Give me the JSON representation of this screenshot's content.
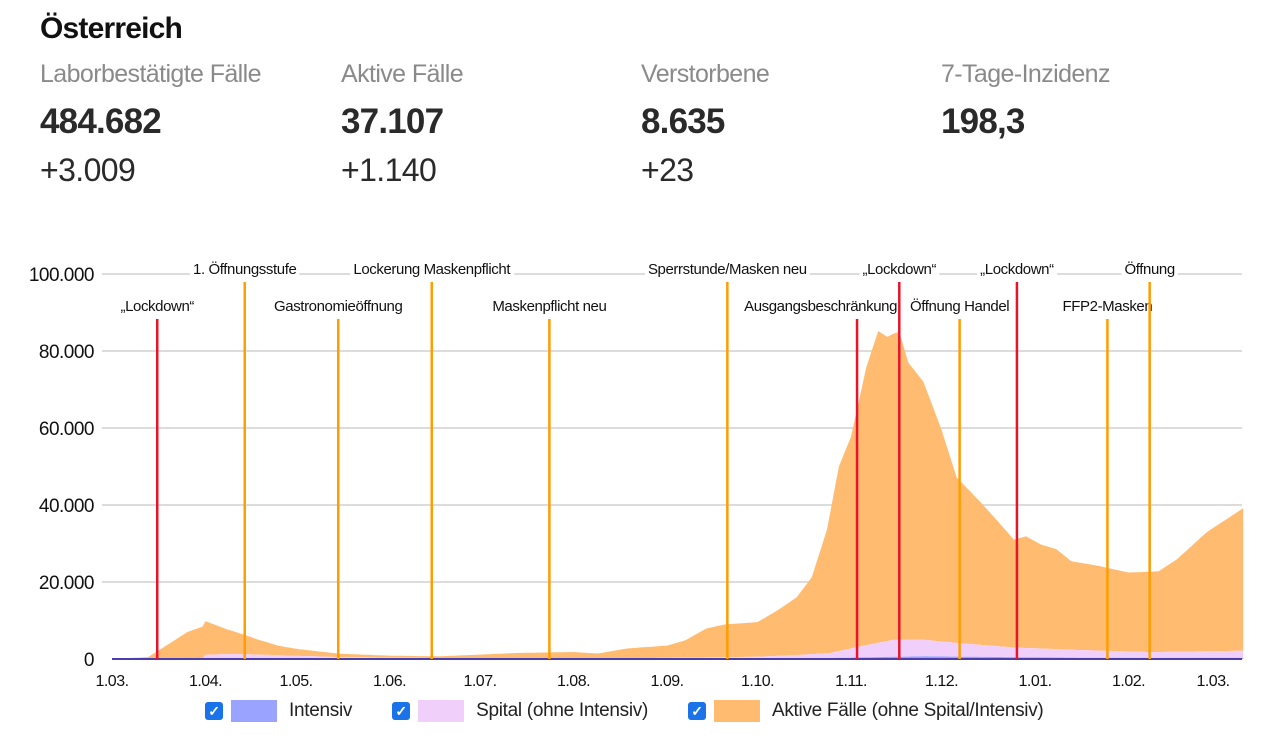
{
  "title": "Österreich",
  "stats": [
    {
      "label": "Laborbestätigte Fälle",
      "value": "484.682",
      "delta": "+3.009"
    },
    {
      "label": "Aktive Fälle",
      "value": "37.107",
      "delta": "+1.140"
    },
    {
      "label": "Verstorbene",
      "value": "8.635",
      "delta": "+23"
    },
    {
      "label": "7-Tage-Inzidenz",
      "value": "198,3",
      "delta": ""
    }
  ],
  "legend": [
    {
      "label": "Intensiv",
      "checked": true,
      "color": "#9aa3ff"
    },
    {
      "label": "Spital (ohne Intensiv)",
      "checked": true,
      "color": "#f0d0fb"
    },
    {
      "label": "Aktive Fälle (ohne Spital/Intensiv)",
      "checked": true,
      "color": "#ffbb70"
    }
  ],
  "chart_data": {
    "type": "area",
    "stacked": true,
    "title": "",
    "xlabel": "",
    "ylabel": "",
    "ylim": [
      0,
      100000
    ],
    "xlim": [
      "2020-03-01",
      "2021-03-11"
    ],
    "grid": true,
    "legend_position": "bottom",
    "y_ticks": [
      {
        "value": 0,
        "label": "0"
      },
      {
        "value": 20000,
        "label": "20.000"
      },
      {
        "value": 40000,
        "label": "40.000"
      },
      {
        "value": 60000,
        "label": "60.000"
      },
      {
        "value": 80000,
        "label": "80.000"
      },
      {
        "value": 100000,
        "label": "100.000"
      }
    ],
    "x_ticks": [
      {
        "date": "2020-03-01",
        "label": "1.03."
      },
      {
        "date": "2020-04-01",
        "label": "1.04."
      },
      {
        "date": "2020-05-01",
        "label": "1.05."
      },
      {
        "date": "2020-06-01",
        "label": "1.06."
      },
      {
        "date": "2020-07-01",
        "label": "1.07."
      },
      {
        "date": "2020-08-01",
        "label": "1.08."
      },
      {
        "date": "2020-09-01",
        "label": "1.09."
      },
      {
        "date": "2020-10-01",
        "label": "1.10."
      },
      {
        "date": "2020-11-01",
        "label": "1.11."
      },
      {
        "date": "2020-12-01",
        "label": "1.12."
      },
      {
        "date": "2021-01-01",
        "label": "1.01."
      },
      {
        "date": "2021-02-01",
        "label": "1.02."
      },
      {
        "date": "2021-03-01",
        "label": "1.03."
      }
    ],
    "series": [
      {
        "name": "Intensiv",
        "color": "#6b74f0",
        "x": [
          "2020-03-01",
          "2020-03-31",
          "2020-04-10",
          "2020-05-15",
          "2020-07-01",
          "2020-09-01",
          "2020-10-15",
          "2020-11-10",
          "2020-11-25",
          "2020-12-15",
          "2021-01-15",
          "2021-02-15",
          "2021-03-11"
        ],
        "y": [
          0,
          0,
          250,
          100,
          20,
          30,
          100,
          500,
          700,
          550,
          350,
          280,
          350
        ]
      },
      {
        "name": "Spital (ohne Intensiv)",
        "color": "#f0d0fb",
        "x": [
          "2020-03-01",
          "2020-03-31",
          "2020-04-01",
          "2020-04-15",
          "2020-05-15",
          "2020-07-01",
          "2020-09-01",
          "2020-10-01",
          "2020-10-25",
          "2020-11-05",
          "2020-11-15",
          "2020-11-25",
          "2020-12-07",
          "2020-12-25",
          "2021-01-15",
          "2021-02-08",
          "2021-03-11"
        ],
        "y": [
          0,
          0,
          1100,
          1000,
          400,
          120,
          250,
          500,
          1300,
          3000,
          4400,
          4300,
          3500,
          2500,
          2000,
          1500,
          1800
        ]
      },
      {
        "name": "Aktive Fälle (ohne Spital/Intensiv)",
        "color": "#ffbb70",
        "x": [
          "2020-03-01",
          "2020-03-13",
          "2020-03-16",
          "2020-03-26",
          "2020-04-01",
          "2020-04-08",
          "2020-04-18",
          "2020-04-25",
          "2020-05-01",
          "2020-05-15",
          "2020-06-01",
          "2020-06-17",
          "2020-07-01",
          "2020-07-13",
          "2020-08-01",
          "2020-08-09",
          "2020-08-19",
          "2020-09-01",
          "2020-09-07",
          "2020-09-14",
          "2020-09-20",
          "2020-10-01",
          "2020-10-08",
          "2020-10-14",
          "2020-10-19",
          "2020-10-24",
          "2020-10-28",
          "2020-11-01",
          "2020-11-06",
          "2020-11-10",
          "2020-11-13",
          "2020-11-17",
          "2020-11-20",
          "2020-11-25",
          "2020-12-01",
          "2020-12-06",
          "2020-12-14",
          "2020-12-19",
          "2020-12-25",
          "2020-12-29",
          "2021-01-03",
          "2021-01-08",
          "2021-01-13",
          "2021-01-22",
          "2021-02-01",
          "2021-02-11",
          "2021-02-17",
          "2021-02-27",
          "2021-03-11"
        ],
        "y": [
          0,
          500,
          2000,
          7000,
          8700,
          6500,
          4000,
          2500,
          1800,
          900,
          500,
          450,
          1000,
          1400,
          1600,
          1200,
          2500,
          3200,
          4500,
          7500,
          8500,
          9000,
          12000,
          15000,
          20000,
          32000,
          48000,
          55000,
          72000,
          81000,
          79000,
          80000,
          72000,
          67000,
          55000,
          43000,
          37000,
          33000,
          28000,
          29000,
          27000,
          26000,
          23000,
          22000,
          20500,
          21000,
          24000,
          31000,
          37000
        ]
      }
    ],
    "events": [
      {
        "date": "2020-03-16",
        "label": "„Lockdown“",
        "type": "lockdown",
        "row": 2
      },
      {
        "date": "2020-04-14",
        "label": "1. Öffnungsstufe",
        "type": "measure",
        "row": 1
      },
      {
        "date": "2020-05-15",
        "label": "Gastronomieöffnung",
        "type": "measure",
        "row": 2
      },
      {
        "date": "2020-06-15",
        "label": "Lockerung Maskenpflicht",
        "type": "measure",
        "row": 1
      },
      {
        "date": "2020-07-24",
        "label": "Maskenpflicht neu",
        "type": "measure",
        "row": 2
      },
      {
        "date": "2020-09-21",
        "label": "Sperrstunde/Masken neu",
        "type": "measure",
        "row": 1
      },
      {
        "date": "2020-11-03",
        "label": "Ausgangsbeschränkung",
        "type": "lockdown",
        "row": 2
      },
      {
        "date": "2020-11-17",
        "label": "„Lockdown“",
        "type": "lockdown",
        "row": 1
      },
      {
        "date": "2020-12-07",
        "label": "Öffnung Handel",
        "type": "measure",
        "row": 2
      },
      {
        "date": "2020-12-26",
        "label": "„Lockdown“",
        "type": "lockdown",
        "row": 1
      },
      {
        "date": "2021-01-25",
        "label": "FFP2-Masken",
        "type": "measure",
        "row": 2
      },
      {
        "date": "2021-02-08",
        "label": "Öffnung",
        "type": "measure",
        "row": 1
      }
    ],
    "event_colors": {
      "lockdown": "#e8142a",
      "measure": "#ff9d00"
    }
  }
}
